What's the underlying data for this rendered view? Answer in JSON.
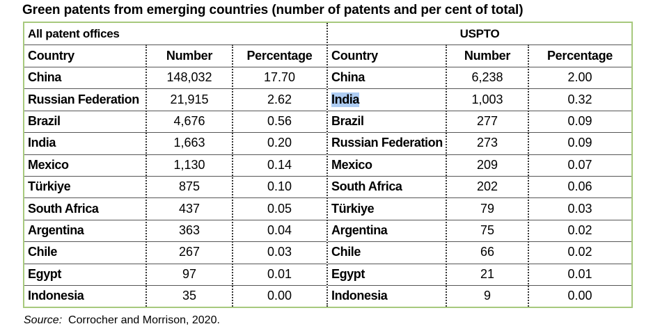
{
  "title": "Green patents from emerging countries (number of patents and per cent of total)",
  "colors": {
    "frame_border": "#a7c97d",
    "highlight": "#aecdf3"
  },
  "left_table": {
    "section_label": "All patent offices",
    "headers": {
      "country": "Country",
      "number": "Number",
      "percentage": "Percentage"
    },
    "rows": [
      {
        "country": "China",
        "number": "148,032",
        "percentage": "17.70"
      },
      {
        "country": "Russian Federation",
        "number": "21,915",
        "percentage": "2.62"
      },
      {
        "country": "Brazil",
        "number": "4,676",
        "percentage": "0.56"
      },
      {
        "country": "India",
        "number": "1,663",
        "percentage": "0.20"
      },
      {
        "country": "Mexico",
        "number": "1,130",
        "percentage": "0.14"
      },
      {
        "country": "Türkiye",
        "number": "875",
        "percentage": "0.10"
      },
      {
        "country": "South Africa",
        "number": "437",
        "percentage": "0.05"
      },
      {
        "country": "Argentina",
        "number": "363",
        "percentage": "0.04"
      },
      {
        "country": "Chile",
        "number": "267",
        "percentage": "0.03"
      },
      {
        "country": "Egypt",
        "number": "97",
        "percentage": "0.01"
      },
      {
        "country": "Indonesia",
        "number": "35",
        "percentage": "0.00"
      }
    ]
  },
  "right_table": {
    "section_label": "USPTO",
    "headers": {
      "country": "Country",
      "number": "Number",
      "percentage": "Percentage"
    },
    "rows": [
      {
        "country": "China",
        "number": "6,238",
        "percentage": "2.00"
      },
      {
        "country": "India",
        "number": "1,003",
        "percentage": "0.32",
        "highlighted": true
      },
      {
        "country": "Brazil",
        "number": "277",
        "percentage": "0.09"
      },
      {
        "country": "Russian Federation",
        "number": "273",
        "percentage": "0.09"
      },
      {
        "country": "Mexico",
        "number": "209",
        "percentage": "0.07"
      },
      {
        "country": "South Africa",
        "number": "202",
        "percentage": "0.06"
      },
      {
        "country": "Türkiye",
        "number": "79",
        "percentage": "0.03"
      },
      {
        "country": "Argentina",
        "number": "75",
        "percentage": "0.02"
      },
      {
        "country": "Chile",
        "number": "66",
        "percentage": "0.02"
      },
      {
        "country": "Egypt",
        "number": "21",
        "percentage": "0.01"
      },
      {
        "country": "Indonesia",
        "number": "9",
        "percentage": "0.00"
      }
    ]
  },
  "source": {
    "label": "Source:",
    "text": "Corrocher and Morrison, 2020."
  }
}
